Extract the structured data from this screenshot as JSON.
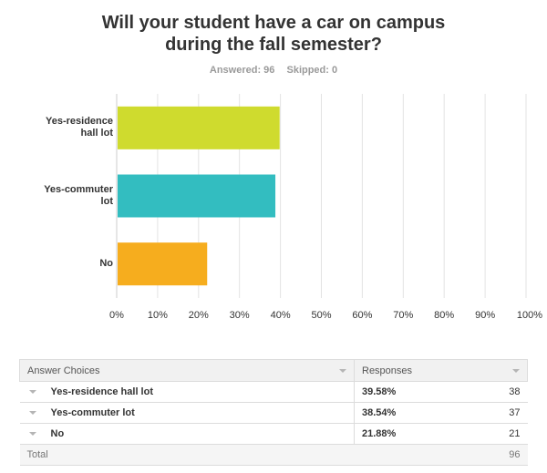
{
  "question": {
    "title_line1": "Will your student have a car on campus",
    "title_line2": "during the fall semester?",
    "answered": "Answered: 96",
    "skipped": "Skipped: 0"
  },
  "chart_data": {
    "type": "bar",
    "orientation": "horizontal",
    "categories": [
      "Yes-residence hall lot",
      "Yes-commuter lot",
      "No"
    ],
    "category_labels": [
      [
        "Yes-residence",
        "hall lot"
      ],
      [
        "Yes-commuter",
        "lot"
      ],
      [
        "No"
      ]
    ],
    "values": [
      39.58,
      38.54,
      21.88
    ],
    "colors": [
      "#cfdb2e",
      "#33bdc0",
      "#f6ad1e"
    ],
    "xlim": [
      0,
      100
    ],
    "x_ticks": [
      "0%",
      "10%",
      "20%",
      "30%",
      "40%",
      "50%",
      "60%",
      "70%",
      "80%",
      "90%",
      "100%"
    ],
    "grid": true
  },
  "table": {
    "header_choices": "Answer Choices",
    "header_responses": "Responses",
    "rows": [
      {
        "choice": "Yes-residence hall lot",
        "percent": "39.58%",
        "count": "38"
      },
      {
        "choice": "Yes-commuter lot",
        "percent": "38.54%",
        "count": "37"
      },
      {
        "choice": "No",
        "percent": "21.88%",
        "count": "21"
      }
    ],
    "total_label": "Total",
    "total_count": "96"
  }
}
